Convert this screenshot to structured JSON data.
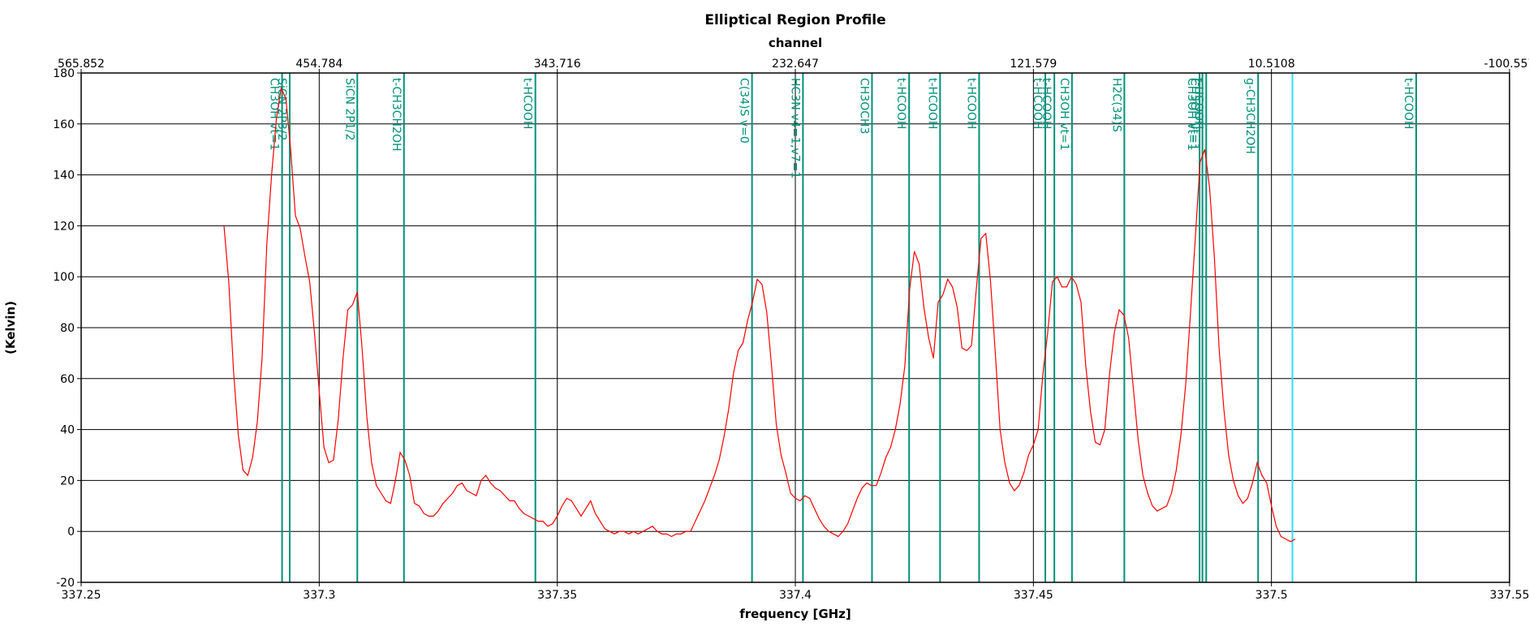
{
  "chart_data": {
    "type": "line",
    "title": "Elliptical Region Profile",
    "x2_label": "channel",
    "xlabel": "frequency [GHz]",
    "ylabel": "(Kelvin)",
    "color": "#ff0000",
    "annotation_color": "#00917a",
    "cursor_color": "#33ddf5",
    "grid": true,
    "xlim": [
      337.25,
      337.55
    ],
    "xticks": [
      337.25,
      337.3,
      337.35,
      337.4,
      337.45,
      337.5,
      337.55
    ],
    "x2lim": [
      565.852,
      -100.557
    ],
    "x2ticks": [
      565.852,
      454.784,
      343.716,
      232.647,
      121.579,
      10.5108,
      -100.557
    ],
    "ylim": [
      -20,
      180
    ],
    "yticks": [
      -20,
      0,
      20,
      40,
      60,
      80,
      100,
      120,
      140,
      160,
      180
    ],
    "cursor": 337.5044,
    "annotations": [
      {
        "label": "CH3OH vt=1",
        "x": 337.2922
      },
      {
        "label": "SiCN 2P3/2",
        "x": 337.2938
      },
      {
        "label": "SiCN 2P1/2",
        "x": 337.308
      },
      {
        "label": "t-CH3CH2OH",
        "x": 337.3178
      },
      {
        "label": "t-HCOOH",
        "x": 337.3454
      },
      {
        "label": "C(34)S v=0",
        "x": 337.3909
      },
      {
        "label": "HC3N v4=1,v7=1",
        "x": 337.4016
      },
      {
        "label": "CH3OCH3",
        "x": 337.4161
      },
      {
        "label": "t-HCOOH",
        "x": 337.4239
      },
      {
        "label": "t-HCOOH",
        "x": 337.4304
      },
      {
        "label": "t-HCOOH",
        "x": 337.4386
      },
      {
        "label": "t-HCOOH",
        "x": 337.4525
      },
      {
        "label": "t-HCOOH",
        "x": 337.4544
      },
      {
        "label": "CH3OH vt=1",
        "x": 337.4581
      },
      {
        "label": "H2C(34)S",
        "x": 337.4691
      },
      {
        "label": "CH3OH vt=1",
        "x": 337.4849
      },
      {
        "label": "CH3OH vt=1",
        "x": 337.4855
      },
      {
        "label": "t-HCOOH",
        "x": 337.4863
      },
      {
        "label": "g-CH3CH2OH",
        "x": 337.4972
      },
      {
        "label": "t-HCOOH",
        "x": 337.5304
      }
    ],
    "x": [
      337.28,
      337.281,
      337.282,
      337.283,
      337.284,
      337.285,
      337.286,
      337.287,
      337.288,
      337.289,
      337.29,
      337.291,
      337.292,
      337.293,
      337.294,
      337.295,
      337.296,
      337.297,
      337.298,
      337.299,
      337.3,
      337.301,
      337.302,
      337.303,
      337.304,
      337.305,
      337.306,
      337.307,
      337.308,
      337.309,
      337.31,
      337.311,
      337.312,
      337.313,
      337.314,
      337.315,
      337.316,
      337.317,
      337.318,
      337.319,
      337.32,
      337.321,
      337.322,
      337.323,
      337.324,
      337.325,
      337.326,
      337.327,
      337.328,
      337.329,
      337.33,
      337.331,
      337.332,
      337.333,
      337.334,
      337.335,
      337.336,
      337.337,
      337.338,
      337.339,
      337.34,
      337.341,
      337.342,
      337.343,
      337.344,
      337.345,
      337.346,
      337.347,
      337.348,
      337.349,
      337.35,
      337.351,
      337.352,
      337.353,
      337.354,
      337.355,
      337.356,
      337.357,
      337.358,
      337.359,
      337.36,
      337.361,
      337.362,
      337.363,
      337.364,
      337.365,
      337.366,
      337.367,
      337.368,
      337.369,
      337.37,
      337.371,
      337.372,
      337.373,
      337.374,
      337.375,
      337.376,
      337.377,
      337.378,
      337.379,
      337.38,
      337.381,
      337.382,
      337.383,
      337.384,
      337.385,
      337.386,
      337.387,
      337.388,
      337.389,
      337.39,
      337.391,
      337.392,
      337.393,
      337.394,
      337.395,
      337.396,
      337.397,
      337.398,
      337.399,
      337.4,
      337.401,
      337.402,
      337.403,
      337.404,
      337.405,
      337.406,
      337.407,
      337.408,
      337.409,
      337.41,
      337.411,
      337.412,
      337.413,
      337.414,
      337.415,
      337.416,
      337.417,
      337.418,
      337.419,
      337.42,
      337.421,
      337.422,
      337.423,
      337.424,
      337.425,
      337.426,
      337.427,
      337.428,
      337.429,
      337.43,
      337.431,
      337.432,
      337.433,
      337.434,
      337.435,
      337.436,
      337.437,
      337.438,
      337.439,
      337.44,
      337.441,
      337.442,
      337.443,
      337.444,
      337.445,
      337.446,
      337.447,
      337.448,
      337.449,
      337.45,
      337.451,
      337.452,
      337.453,
      337.454,
      337.455,
      337.456,
      337.457,
      337.458,
      337.459,
      337.46,
      337.461,
      337.462,
      337.463,
      337.464,
      337.465,
      337.466,
      337.467,
      337.468,
      337.469,
      337.47,
      337.471,
      337.472,
      337.473,
      337.474,
      337.475,
      337.476,
      337.477,
      337.478,
      337.479,
      337.48,
      337.481,
      337.482,
      337.483,
      337.484,
      337.485,
      337.486,
      337.487,
      337.488,
      337.489,
      337.49,
      337.491,
      337.492,
      337.493,
      337.494,
      337.495,
      337.496,
      337.497,
      337.498,
      337.499,
      337.5,
      337.501,
      337.502,
      337.503,
      337.504,
      337.505
    ],
    "values": [
      120,
      98,
      63,
      38,
      24,
      22,
      29,
      43,
      68,
      113,
      140,
      162,
      174,
      170,
      150,
      124,
      119,
      108,
      98,
      78,
      55,
      33,
      27,
      28,
      44,
      68,
      87,
      89,
      94,
      72,
      45,
      27,
      18,
      15,
      12,
      11,
      20,
      31,
      28,
      22,
      11,
      10,
      7,
      6,
      6,
      8,
      11,
      13,
      15,
      18,
      19,
      16,
      15,
      14,
      20,
      22,
      19,
      17,
      16,
      14,
      12,
      12,
      9,
      7,
      6,
      5,
      4,
      4,
      2,
      3,
      6,
      10,
      13,
      12,
      9,
      6,
      9,
      12,
      7,
      4,
      1,
      0,
      -1,
      0,
      0,
      -1,
      0,
      -1,
      0,
      1,
      2,
      0,
      -1,
      -1,
      -2,
      -1,
      -1,
      0,
      0,
      4,
      8,
      12,
      17,
      22,
      28,
      37,
      48,
      62,
      71,
      74,
      83,
      90,
      99,
      97,
      86,
      65,
      42,
      30,
      23,
      15,
      13,
      12,
      14,
      13,
      9,
      5,
      2,
      0,
      -1,
      -2,
      0,
      3,
      8,
      13,
      17,
      19,
      18,
      18,
      23,
      29,
      33,
      40,
      50,
      65,
      95,
      110,
      105,
      88,
      76,
      68,
      90,
      93,
      99,
      96,
      88,
      72,
      71,
      73,
      95,
      115,
      117,
      98,
      70,
      40,
      27,
      19,
      16,
      18,
      23,
      30,
      34,
      40,
      62,
      78,
      98,
      100,
      96,
      96,
      100,
      97,
      90,
      65,
      47,
      35,
      34,
      40,
      62,
      78,
      87,
      85,
      76,
      56,
      36,
      22,
      15,
      10,
      8,
      9,
      10,
      15,
      24,
      38,
      58,
      86,
      115,
      145,
      150,
      135,
      108,
      72,
      48,
      30,
      20,
      14,
      11,
      13,
      19,
      27,
      22,
      19,
      10,
      2,
      -2,
      -3,
      -4,
      -3
    ]
  }
}
